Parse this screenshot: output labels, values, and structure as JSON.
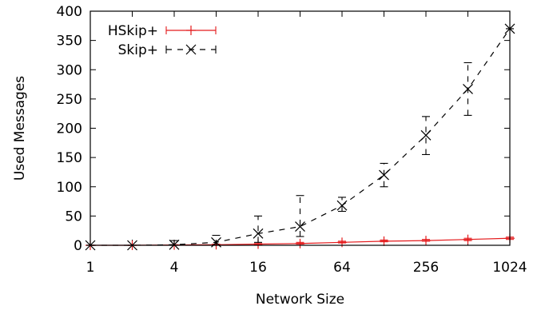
{
  "chart_data": {
    "type": "line",
    "xlabel": "Network Size",
    "ylabel": "Used Messages",
    "x_scale": "log2",
    "xlim": [
      1,
      1024
    ],
    "ylim": [
      0,
      400
    ],
    "x_ticks": [
      1,
      4,
      16,
      64,
      256,
      1024
    ],
    "x_tick_labels": [
      "1",
      "4",
      "16",
      "64",
      "256",
      "1024"
    ],
    "y_ticks": [
      0,
      50,
      100,
      150,
      200,
      250,
      300,
      350,
      400
    ],
    "y_tick_labels": [
      "0",
      "50",
      "100",
      "150",
      "200",
      "250",
      "300",
      "350",
      "400"
    ],
    "grid": false,
    "legend_position": "top-left",
    "series": [
      {
        "name": "HSkip+",
        "color": "#e41a1c",
        "line_style": "solid",
        "marker": "plus",
        "points": [
          {
            "x": 1,
            "y": 0,
            "ylo": 0,
            "yhi": 0
          },
          {
            "x": 2,
            "y": 0,
            "ylo": 0,
            "yhi": 0
          },
          {
            "x": 4,
            "y": 0.5,
            "ylo": 0,
            "yhi": 1
          },
          {
            "x": 8,
            "y": 1,
            "ylo": 0.5,
            "yhi": 2
          },
          {
            "x": 16,
            "y": 2,
            "ylo": 1,
            "yhi": 3
          },
          {
            "x": 32,
            "y": 3,
            "ylo": 2,
            "yhi": 5
          },
          {
            "x": 64,
            "y": 5,
            "ylo": 4,
            "yhi": 7
          },
          {
            "x": 128,
            "y": 7,
            "ylo": 6,
            "yhi": 9
          },
          {
            "x": 256,
            "y": 8,
            "ylo": 7,
            "yhi": 10
          },
          {
            "x": 512,
            "y": 10,
            "ylo": 8,
            "yhi": 12
          },
          {
            "x": 1024,
            "y": 12,
            "ylo": 10,
            "yhi": 14
          }
        ]
      },
      {
        "name": "Skip+",
        "color": "#000000",
        "line_style": "dashed",
        "marker": "cross",
        "points": [
          {
            "x": 1,
            "y": 0,
            "ylo": 0,
            "yhi": 0
          },
          {
            "x": 2,
            "y": 0,
            "ylo": 0,
            "yhi": 0
          },
          {
            "x": 4,
            "y": 1,
            "ylo": 0,
            "yhi": 8
          },
          {
            "x": 8,
            "y": 5,
            "ylo": 0,
            "yhi": 17
          },
          {
            "x": 16,
            "y": 20,
            "ylo": 5,
            "yhi": 50
          },
          {
            "x": 32,
            "y": 32,
            "ylo": 15,
            "yhi": 85
          },
          {
            "x": 64,
            "y": 68,
            "ylo": 58,
            "yhi": 82
          },
          {
            "x": 128,
            "y": 120,
            "ylo": 100,
            "yhi": 140
          },
          {
            "x": 256,
            "y": 188,
            "ylo": 155,
            "yhi": 220
          },
          {
            "x": 512,
            "y": 267,
            "ylo": 222,
            "yhi": 312
          },
          {
            "x": 1024,
            "y": 370,
            "ylo": 370,
            "yhi": 370
          }
        ]
      }
    ]
  }
}
